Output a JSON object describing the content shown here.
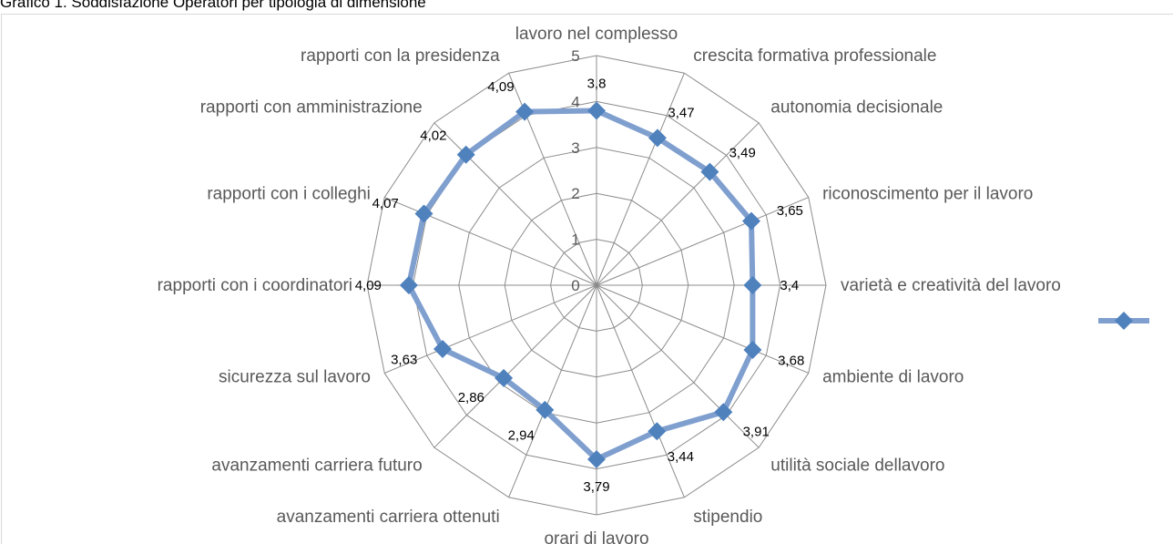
{
  "page": {
    "caption": "Grafico 1. Soddisfazione Operatori per tipologia di dimensione"
  },
  "chart_data": {
    "type": "radar",
    "categories": [
      "lavoro nel complesso",
      "crescita formativa professionale",
      "autonomia decisionale",
      "riconoscimento per il lavoro",
      "varietà e creatività  del lavoro",
      "ambiente di lavoro",
      "utilità sociale dellavoro",
      "stipendio",
      "orari di lavoro",
      "avanzamenti carriera ottenuti",
      "avanzamenti carriera futuro",
      "sicurezza sul lavoro",
      "rapporti con i coordinatori",
      "rapporti con i colleghi",
      "rapporti con amministrazione",
      "rapporti con la presidenza"
    ],
    "series": [
      {
        "values": [
          3.8,
          3.47,
          3.49,
          3.65,
          3.4,
          3.68,
          3.91,
          3.44,
          3.79,
          2.94,
          2.86,
          3.63,
          4.09,
          4.07,
          4.02,
          4.09
        ],
        "data_labels": [
          "3,8",
          "3,47",
          "3,49",
          "3,65",
          "3,4",
          "3,68",
          "3,91",
          "3,44",
          "3,79",
          "2,94",
          "2,86",
          "3,63",
          "4,09",
          "4,07",
          "4,02",
          "4,09"
        ]
      }
    ],
    "rlim": [
      0,
      5
    ],
    "ticks": [
      "0",
      "1",
      "2",
      "3",
      "4",
      "5"
    ],
    "grid": true,
    "legend": "right",
    "colors": {
      "line": "#7f9fcf",
      "marker": "#4f81bd",
      "grid": "#8c8c8c",
      "frame": "#d9d9d9"
    }
  }
}
